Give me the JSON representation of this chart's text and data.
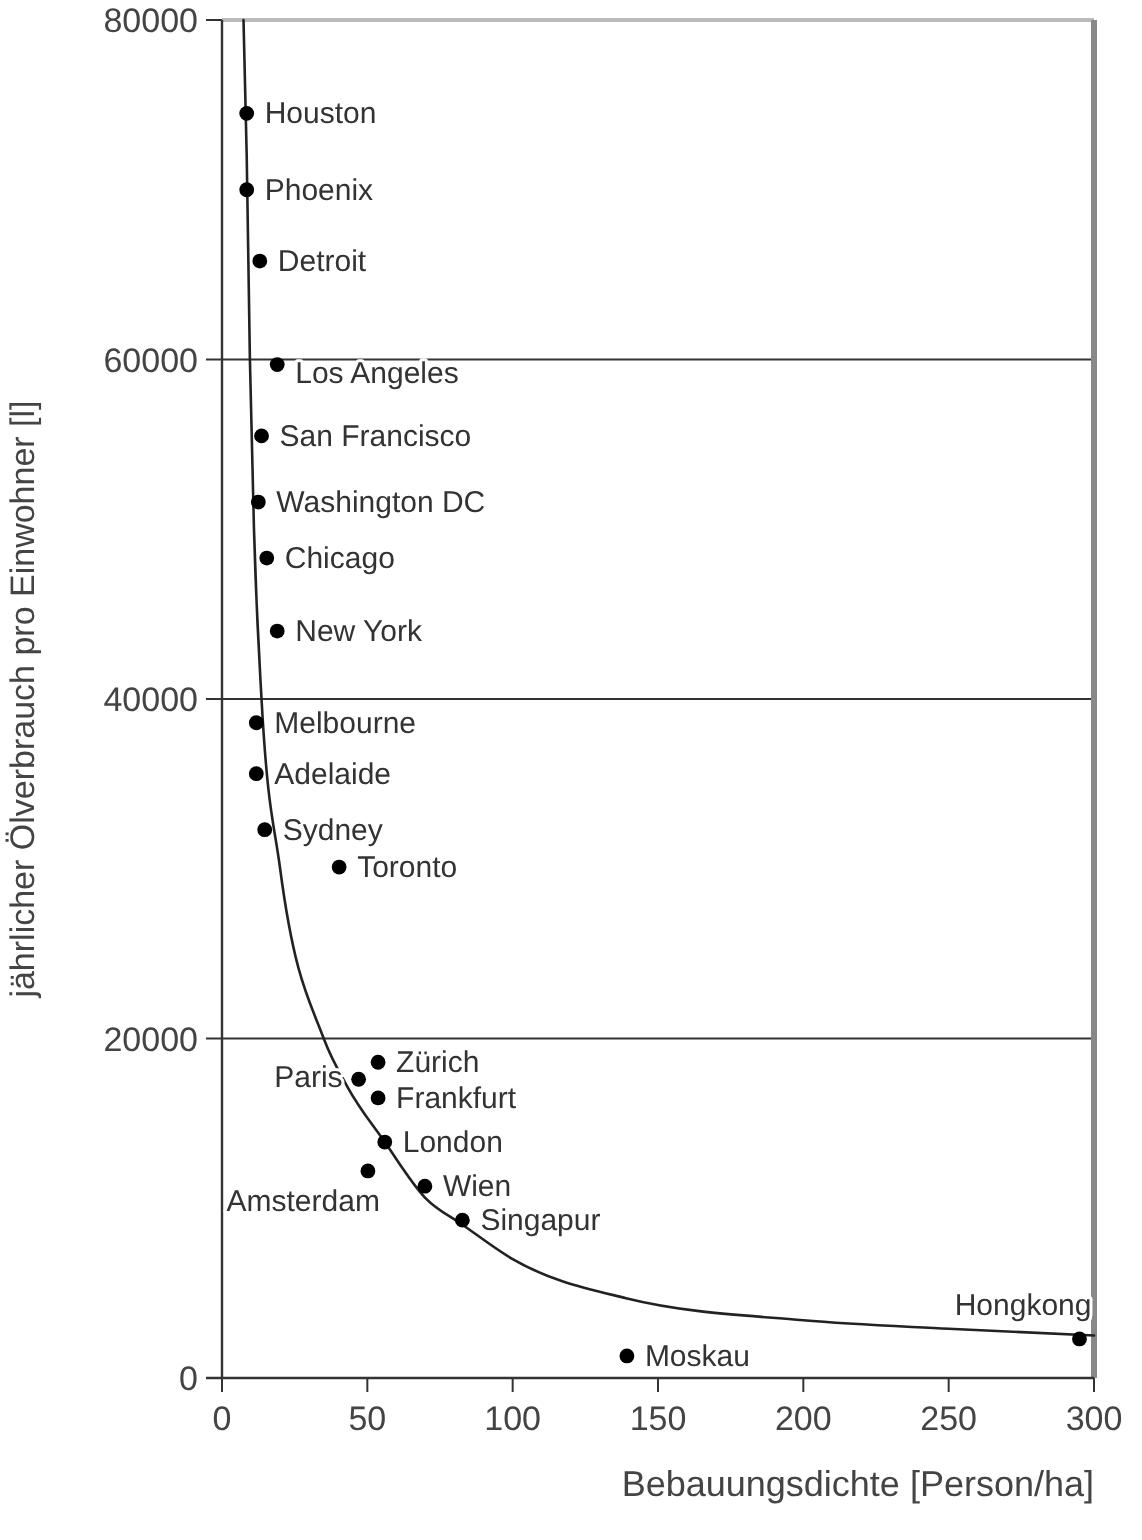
{
  "chart_data": {
    "type": "scatter",
    "xlabel": "Bebauungsdichte [Person/ha]",
    "ylabel": "jährlicher Ölverbrauch pro Einwohner [l]",
    "xlim": [
      0,
      300
    ],
    "xticks": [
      0,
      50,
      100,
      150,
      200,
      250,
      300
    ],
    "ylim": [
      0,
      80000
    ],
    "yticks": [
      0,
      20000,
      40000,
      60000,
      80000
    ],
    "grid": "y",
    "marker": "circle",
    "series": [
      {
        "color": "#000000",
        "x": [
          8.5,
          8.5,
          13,
          19,
          13.6,
          12.5,
          15.4,
          19,
          11.8,
          11.8,
          14.7,
          40.3,
          53.7,
          47,
          53.7,
          56,
          50.2,
          69.8,
          82.7,
          139.3,
          295
        ],
        "values": [
          74500,
          70000,
          65800,
          59700,
          55500,
          51600,
          48300,
          44000,
          38600,
          35600,
          32300,
          30100,
          18600,
          17600,
          16500,
          13900,
          12200,
          11300,
          9300,
          1300,
          2300
        ]
      },
      {
        "type": "line",
        "marker": "none",
        "color": "#222222",
        "line_style": "solid",
        "x": [
          7.4,
          8.5,
          9.6,
          11,
          13.6,
          20,
          35,
          43,
          56,
          70,
          83,
          100,
          139,
          200,
          250,
          300
        ],
        "values": [
          80000,
          72000,
          60000,
          50000,
          40000,
          30000,
          20000,
          17200,
          13900,
          10600,
          9000,
          7000,
          4700,
          3400,
          2900,
          2500
        ]
      }
    ],
    "annotations": [
      {
        "text": "Houston",
        "x": 8.5,
        "y": 74500
      },
      {
        "text": "Phoenix",
        "x": 8.5,
        "y": 70000
      },
      {
        "text": "Detroit",
        "x": 13,
        "y": 65800
      },
      {
        "text": "Los Angeles",
        "x": 19,
        "y": 59700
      },
      {
        "text": "San Francisco",
        "x": 13.6,
        "y": 55500
      },
      {
        "text": "Washington DC",
        "x": 12.5,
        "y": 51600
      },
      {
        "text": "Chicago",
        "x": 15.4,
        "y": 48300
      },
      {
        "text": "New York",
        "x": 19,
        "y": 44000
      },
      {
        "text": "Melbourne",
        "x": 11.8,
        "y": 38600
      },
      {
        "text": "Adelaide",
        "x": 11.8,
        "y": 35600
      },
      {
        "text": "Sydney",
        "x": 14.7,
        "y": 32300
      },
      {
        "text": "Toronto",
        "x": 40.3,
        "y": 30100
      },
      {
        "text": "Zürich",
        "x": 53.7,
        "y": 18600
      },
      {
        "text": "Paris",
        "x": 47,
        "y": 17600
      },
      {
        "text": "Frankfurt",
        "x": 53.7,
        "y": 16500
      },
      {
        "text": "London",
        "x": 56,
        "y": 13900
      },
      {
        "text": "Amsterdam",
        "x": 50.2,
        "y": 12200
      },
      {
        "text": "Wien",
        "x": 69.8,
        "y": 11300
      },
      {
        "text": "Singapur",
        "x": 82.7,
        "y": 9300
      },
      {
        "text": "Moskau",
        "x": 139.3,
        "y": 1300
      },
      {
        "text": "Hongkong",
        "x": 295,
        "y": 2300
      }
    ]
  }
}
